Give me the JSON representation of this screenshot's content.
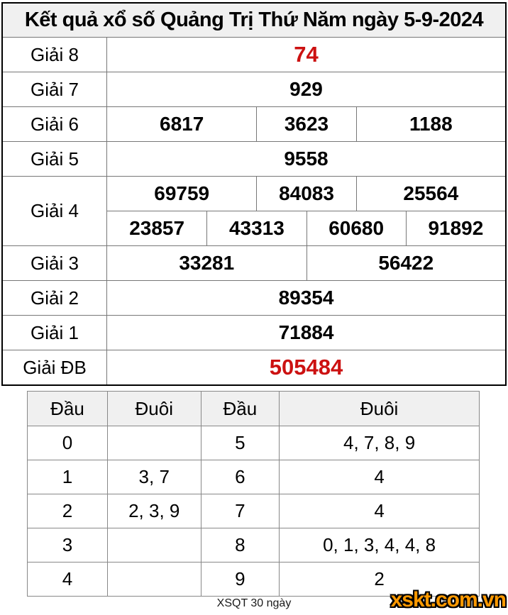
{
  "title": "Kết quả xổ số Quảng Trị Thứ Năm ngày 5-9-2024",
  "colors": {
    "highlight_red": "#cc1111",
    "logo_orange": "#ff9900",
    "header_bg": "#f0f0f0",
    "outer_border": "#000000",
    "inner_border": "#777777"
  },
  "prize_table": {
    "rows": [
      {
        "label": "Giải 8",
        "cells": [
          "74"
        ],
        "highlight": true
      },
      {
        "label": "Giải 7",
        "cells": [
          "929"
        ],
        "highlight": false
      },
      {
        "label": "Giải 6",
        "cells": [
          "6817",
          "3623",
          "1188"
        ],
        "highlight": false
      },
      {
        "label": "Giải 5",
        "cells": [
          "9558"
        ],
        "highlight": false
      },
      {
        "label": "Giải 4",
        "cells": [
          "69759",
          "84083",
          "25564"
        ],
        "cells_b": [
          "23857",
          "43313",
          "60680",
          "91892"
        ],
        "highlight": false
      },
      {
        "label": "Giải 3",
        "cells": [
          "33281",
          "56422"
        ],
        "highlight": false
      },
      {
        "label": "Giải 2",
        "cells": [
          "89354"
        ],
        "highlight": false
      },
      {
        "label": "Giải 1",
        "cells": [
          "71884"
        ],
        "highlight": false
      },
      {
        "label": "Giải ĐB",
        "cells": [
          "505484"
        ],
        "highlight": true
      }
    ]
  },
  "tail_table": {
    "headers": [
      "Đầu",
      "Đuôi",
      "Đầu",
      "Đuôi"
    ],
    "rows": [
      [
        "0",
        "",
        "5",
        "4, 7, 8, 9"
      ],
      [
        "1",
        "3, 7",
        "6",
        "4"
      ],
      [
        "2",
        "2, 3, 9",
        "7",
        "4"
      ],
      [
        "3",
        "",
        "8",
        "0, 1, 3, 4, 4, 8"
      ],
      [
        "4",
        "",
        "9",
        "2"
      ]
    ]
  },
  "footer": {
    "caption": "XSQT 30 ngày",
    "logo": "xskt.com.vn"
  }
}
